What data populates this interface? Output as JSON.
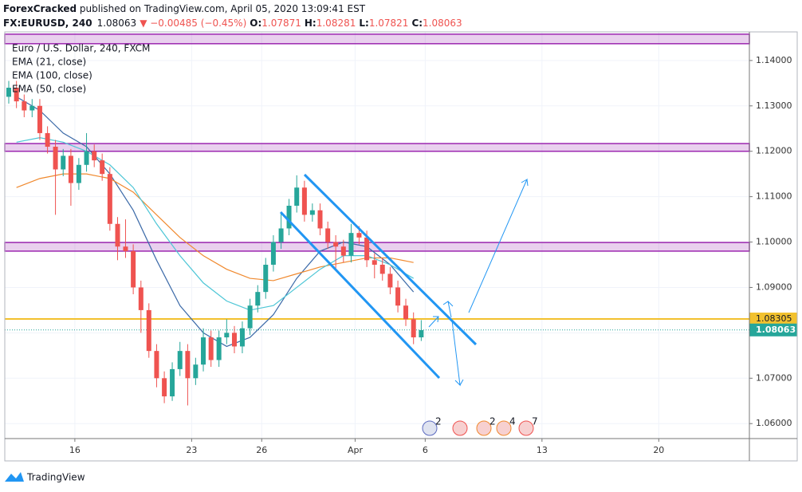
{
  "header": {
    "author": "ForexCracked",
    "published": " published on TradingView.com, April 05, 2020 13:09:41 EST",
    "symbol": "FX:EURUSD, 240",
    "price": "1.08063",
    "change": "▼ −0.00485 (−0.45%)",
    "ohlc": [
      {
        "label": "O:",
        "value": "1.07871"
      },
      {
        "label": "H:",
        "value": "1.08281"
      },
      {
        "label": "L:",
        "value": "1.07821"
      },
      {
        "label": "C:",
        "value": "1.08063"
      }
    ]
  },
  "footer": {
    "brand": "TradingView"
  },
  "chart_data": {
    "type": "candlestick",
    "title": "Euro / U.S. Dollar, 240, FXCM",
    "up_color": "#26a69a",
    "down_color": "#ef5350",
    "xlim": [
      -3.0,
      28.88
    ],
    "xticks": [
      {
        "value": 0,
        "label": "16"
      },
      {
        "value": 5,
        "label": "23"
      },
      {
        "value": 8,
        "label": "26"
      },
      {
        "value": 12,
        "label": "Apr"
      },
      {
        "value": 15,
        "label": "6"
      },
      {
        "value": 20,
        "label": "13"
      },
      {
        "value": 25,
        "label": "20"
      }
    ],
    "ylim": [
      1.0567,
      1.1463
    ],
    "yticks": [
      {
        "value": 1.06,
        "label": "1.06000"
      },
      {
        "value": 1.07,
        "label": "1.07000"
      },
      {
        "value": 1.08,
        "label": "1.08000"
      },
      {
        "value": 1.09,
        "label": "1.09000"
      },
      {
        "value": 1.1,
        "label": "1.10000"
      },
      {
        "value": 1.11,
        "label": "1.11000"
      },
      {
        "value": 1.12,
        "label": "1.12000"
      },
      {
        "value": 1.13,
        "label": "1.13000"
      },
      {
        "value": 1.14,
        "label": "1.14000"
      }
    ],
    "x": [
      -2.83,
      -2.5,
      -2.17,
      -1.83,
      -1.5,
      -1.17,
      -0.83,
      -0.5,
      -0.17,
      0.17,
      0.5,
      0.83,
      1.17,
      1.5,
      1.83,
      2.17,
      2.5,
      2.83,
      3.17,
      3.5,
      3.83,
      4.17,
      4.5,
      4.83,
      5.17,
      5.5,
      5.83,
      6.17,
      6.5,
      6.83,
      7.17,
      7.5,
      7.83,
      8.17,
      8.5,
      8.83,
      9.17,
      9.5,
      9.83,
      10.17,
      10.5,
      10.83,
      11.17,
      11.5,
      11.83,
      12.17,
      12.5,
      12.83,
      13.17,
      13.5,
      13.83,
      14.17,
      14.5,
      14.83
    ],
    "open": [
      1.132,
      1.134,
      1.131,
      1.129,
      1.13,
      1.124,
      1.121,
      1.116,
      1.119,
      1.113,
      1.117,
      1.12,
      1.118,
      1.115,
      1.104,
      1.099,
      1.098,
      1.09,
      1.085,
      1.076,
      1.07,
      1.066,
      1.072,
      1.076,
      1.07,
      1.073,
      1.079,
      1.074,
      1.079,
      1.08,
      1.077,
      1.081,
      1.086,
      1.089,
      1.095,
      1.1,
      1.103,
      1.108,
      1.112,
      1.106,
      1.107,
      1.103,
      1.1,
      1.099,
      1.097,
      1.102,
      1.101,
      1.096,
      1.095,
      1.093,
      1.09,
      1.086,
      1.083,
      1.079
    ],
    "high": [
      1.1355,
      1.1355,
      1.1325,
      1.1315,
      1.1315,
      1.1255,
      1.1225,
      1.1205,
      1.1205,
      1.1185,
      1.124,
      1.1215,
      1.1195,
      1.1165,
      1.1055,
      1.105,
      1.0995,
      1.0915,
      1.0865,
      1.0775,
      1.0715,
      1.0735,
      1.078,
      1.0775,
      1.0745,
      1.081,
      1.0805,
      1.0805,
      1.083,
      1.0815,
      1.0825,
      1.0875,
      1.0905,
      1.0965,
      1.1015,
      1.1065,
      1.1095,
      1.1147,
      1.1135,
      1.1085,
      1.1085,
      1.1045,
      1.1015,
      1.1005,
      1.104,
      1.1035,
      1.1025,
      1.0975,
      1.0965,
      1.0945,
      1.0915,
      1.0875,
      1.0845,
      1.0828
    ],
    "low": [
      1.1305,
      1.1295,
      1.1275,
      1.1275,
      1.1225,
      1.1195,
      1.106,
      1.1145,
      1.108,
      1.1115,
      1.1155,
      1.1165,
      1.1135,
      1.1025,
      1.096,
      1.0965,
      1.0885,
      1.08,
      1.0745,
      1.068,
      1.0645,
      1.065,
      1.0705,
      1.064,
      1.0685,
      1.0715,
      1.0725,
      1.0725,
      1.0775,
      1.0755,
      1.0755,
      1.0795,
      1.0845,
      1.0875,
      1.0935,
      1.0985,
      1.1015,
      1.1065,
      1.1045,
      1.1045,
      1.1015,
      1.0985,
      1.094,
      1.0955,
      1.0955,
      1.0995,
      1.0945,
      1.092,
      1.0915,
      1.0885,
      1.0845,
      1.0815,
      1.0775,
      1.0782
    ],
    "close": [
      1.134,
      1.131,
      1.129,
      1.13,
      1.124,
      1.121,
      1.116,
      1.119,
      1.113,
      1.117,
      1.12,
      1.118,
      1.115,
      1.104,
      1.099,
      1.098,
      1.09,
      1.085,
      1.076,
      1.07,
      1.066,
      1.072,
      1.076,
      1.07,
      1.073,
      1.079,
      1.074,
      1.079,
      1.08,
      1.077,
      1.081,
      1.086,
      1.089,
      1.095,
      1.1,
      1.103,
      1.108,
      1.112,
      1.106,
      1.107,
      1.103,
      1.1,
      1.099,
      1.097,
      1.102,
      1.101,
      1.096,
      1.095,
      1.093,
      1.09,
      1.086,
      1.083,
      1.079,
      1.0806
    ],
    "series": [
      {
        "name": "EMA (21, close)",
        "color": "#3c6aa8",
        "x": [
          -2.5,
          -1.5,
          -0.5,
          0.5,
          1.5,
          2.5,
          3.5,
          4.5,
          5.5,
          6.5,
          7.5,
          8.5,
          9.5,
          10.5,
          11.5,
          12.5,
          13.5,
          14.5
        ],
        "values": [
          1.132,
          1.129,
          1.124,
          1.121,
          1.115,
          1.107,
          1.096,
          1.086,
          1.08,
          1.077,
          1.079,
          1.084,
          1.092,
          1.098,
          1.1,
          1.099,
          1.095,
          1.089
        ]
      },
      {
        "name": "EMA (100, close)",
        "color": "#f0892e",
        "x": [
          -2.5,
          -1.5,
          -0.5,
          0.5,
          1.5,
          2.5,
          3.5,
          4.5,
          5.5,
          6.5,
          7.5,
          8.5,
          9.5,
          10.5,
          11.5,
          12.5,
          13.5,
          14.5
        ],
        "values": [
          1.112,
          1.114,
          1.115,
          1.115,
          1.114,
          1.111,
          1.106,
          1.101,
          1.097,
          1.094,
          1.092,
          1.0915,
          1.093,
          1.0945,
          1.0955,
          1.0965,
          1.0965,
          1.0955
        ]
      },
      {
        "name": "EMA (50, close)",
        "color": "#4dc6d6",
        "x": [
          -2.5,
          -1.5,
          -0.5,
          0.5,
          1.5,
          2.5,
          3.5,
          4.5,
          5.5,
          6.5,
          7.5,
          8.5,
          9.5,
          10.5,
          11.5,
          12.5,
          13.5,
          14.5
        ],
        "values": [
          1.122,
          1.123,
          1.122,
          1.12,
          1.117,
          1.112,
          1.104,
          1.097,
          1.091,
          1.087,
          1.085,
          1.086,
          1.09,
          1.094,
          1.097,
          1.097,
          1.095,
          1.092
        ]
      }
    ],
    "zones": [
      [
        1.1437,
        1.1458
      ],
      [
        1.12,
        1.1217
      ],
      [
        1.098,
        1.0999
      ]
    ],
    "zone_color": "#9c27b0",
    "level": 1.08305,
    "level_color": "#f2c12e",
    "last_price": 1.08063,
    "event_badges": [
      "2",
      "2",
      "4",
      "7"
    ]
  }
}
